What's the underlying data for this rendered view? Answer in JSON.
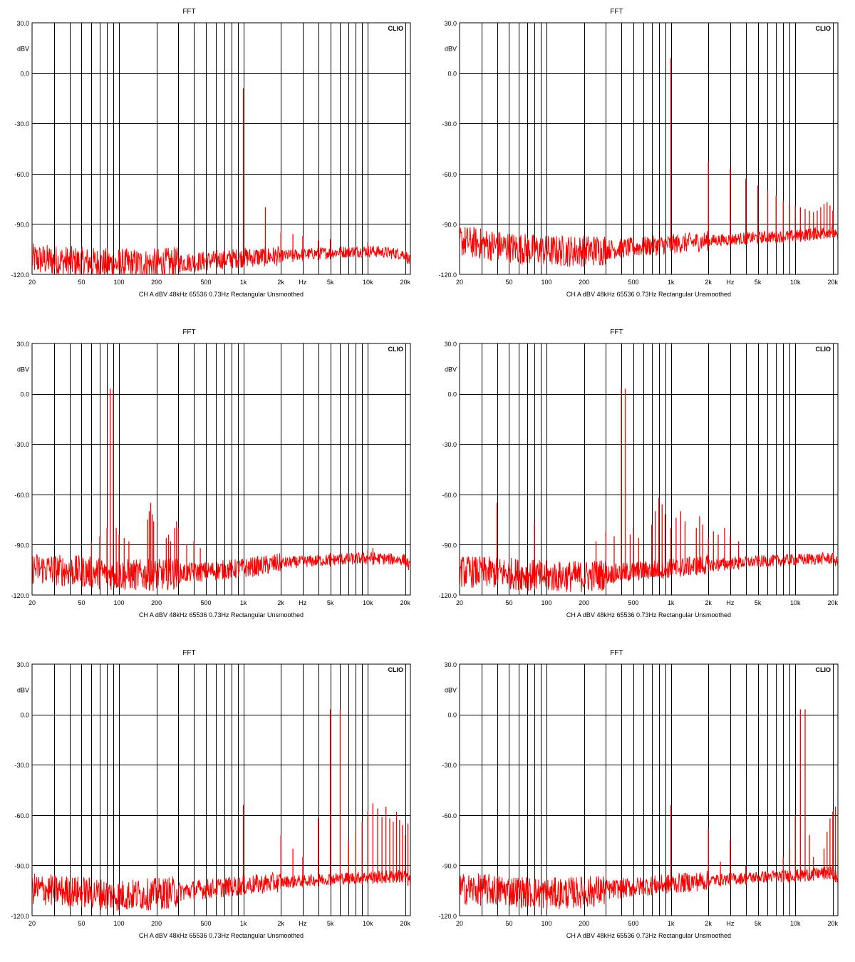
{
  "common": {
    "title": "FFT",
    "brand": "CLIO",
    "y_unit_label": "dBV",
    "x_unit_label": "Hz",
    "footer": "CH A   dBV   48kHz   65536   0.73Hz   Rectangular   Unsmoothed",
    "y_ticks": [
      "30.0",
      "0.0",
      "-30.0",
      "-60.0",
      "-90.0",
      "-120.0"
    ],
    "x_ticks": [
      {
        "f": 20,
        "label": "20"
      },
      {
        "f": 50,
        "label": "50"
      },
      {
        "f": 100,
        "label": "100"
      },
      {
        "f": 200,
        "label": "200"
      },
      {
        "f": 500,
        "label": "500"
      },
      {
        "f": 1000,
        "label": "1k"
      },
      {
        "f": 2000,
        "label": "2k"
      },
      {
        "f": 5000,
        "label": "5k"
      },
      {
        "f": 10000,
        "label": "10k"
      },
      {
        "f": 20000,
        "label": "20k"
      }
    ],
    "colors": {
      "trace": "#ff0000",
      "grid": "#000000",
      "background": "#ffffff"
    }
  },
  "chart_data": [
    {
      "type": "line",
      "title": "FFT",
      "ylabel": "dBV",
      "x_scale": "log",
      "xlim": [
        20,
        22000
      ],
      "ylim": [
        -120,
        30
      ],
      "grid": true,
      "series": [
        {
          "floor": [
            [
              20,
              -111
            ],
            [
              50,
              -113
            ],
            [
              100,
              -114
            ],
            [
              200,
              -114
            ],
            [
              500,
              -112
            ],
            [
              1000,
              -110
            ],
            [
              2000,
              -109
            ],
            [
              5000,
              -107
            ],
            [
              10000,
              -106
            ],
            [
              20000,
              -108
            ],
            [
              22000,
              -113
            ]
          ],
          "peaks": [
            [
              1000,
              -9
            ],
            [
              1500,
              -80
            ],
            [
              2000,
              -95
            ],
            [
              2500,
              -96
            ],
            [
              3000,
              -97
            ],
            [
              4000,
              -100
            ],
            [
              5000,
              -99
            ],
            [
              10000,
              -101
            ]
          ]
        }
      ]
    },
    {
      "type": "line",
      "title": "FFT",
      "ylabel": "dBV",
      "x_scale": "log",
      "xlim": [
        20,
        22000
      ],
      "ylim": [
        -120,
        30
      ],
      "grid": true,
      "series": [
        {
          "floor": [
            [
              20,
              -100
            ],
            [
              50,
              -104
            ],
            [
              100,
              -106
            ],
            [
              200,
              -106
            ],
            [
              500,
              -104
            ],
            [
              1000,
              -102
            ],
            [
              2000,
              -100
            ],
            [
              5000,
              -98
            ],
            [
              10000,
              -97
            ],
            [
              20000,
              -94
            ],
            [
              22000,
              -99
            ]
          ],
          "peaks": [
            [
              1000,
              9
            ],
            [
              2000,
              -53
            ],
            [
              3000,
              -57
            ],
            [
              4000,
              -63
            ],
            [
              5000,
              -67
            ],
            [
              6000,
              -70
            ],
            [
              7000,
              -73
            ],
            [
              8000,
              -76
            ],
            [
              9000,
              -78
            ],
            [
              10000,
              -79
            ],
            [
              11000,
              -80
            ],
            [
              12000,
              -81
            ],
            [
              13000,
              -82
            ],
            [
              14000,
              -83
            ],
            [
              15000,
              -82
            ],
            [
              16000,
              -80
            ],
            [
              17000,
              -78
            ],
            [
              18000,
              -77
            ],
            [
              19000,
              -79
            ],
            [
              20000,
              -82
            ]
          ]
        }
      ]
    },
    {
      "type": "line",
      "title": "FFT",
      "ylabel": "dBV",
      "x_scale": "log",
      "xlim": [
        20,
        22000
      ],
      "ylim": [
        -120,
        30
      ],
      "grid": true,
      "series": [
        {
          "floor": [
            [
              20,
              -104
            ],
            [
              50,
              -106
            ],
            [
              100,
              -108
            ],
            [
              200,
              -108
            ],
            [
              500,
              -106
            ],
            [
              1000,
              -104
            ],
            [
              2000,
              -101
            ],
            [
              5000,
              -99
            ],
            [
              10000,
              -98
            ],
            [
              20000,
              -99
            ],
            [
              22000,
              -104
            ]
          ],
          "peaks": [
            [
              60,
              -88
            ],
            [
              70,
              -85
            ],
            [
              80,
              -80
            ],
            [
              85,
              3
            ],
            [
              90,
              3
            ],
            [
              95,
              -80
            ],
            [
              100,
              -84
            ],
            [
              110,
              -86
            ],
            [
              120,
              -88
            ],
            [
              170,
              -75
            ],
            [
              175,
              -70
            ],
            [
              180,
              -65
            ],
            [
              185,
              -72
            ],
            [
              190,
              -76
            ],
            [
              240,
              -86
            ],
            [
              250,
              -84
            ],
            [
              260,
              -88
            ],
            [
              280,
              -80
            ],
            [
              290,
              -76
            ],
            [
              300,
              -80
            ],
            [
              350,
              -90
            ],
            [
              400,
              -88
            ],
            [
              450,
              -92
            ],
            [
              5000,
              -95
            ],
            [
              10000,
              -93
            ],
            [
              11000,
              -92
            ]
          ]
        }
      ]
    },
    {
      "type": "line",
      "title": "FFT",
      "ylabel": "dBV",
      "x_scale": "log",
      "xlim": [
        20,
        22000
      ],
      "ylim": [
        -120,
        30
      ],
      "grid": true,
      "series": [
        {
          "floor": [
            [
              20,
              -106
            ],
            [
              50,
              -107
            ],
            [
              100,
              -109
            ],
            [
              200,
              -109
            ],
            [
              500,
              -106
            ],
            [
              1000,
              -104
            ],
            [
              2000,
              -102
            ],
            [
              5000,
              -100
            ],
            [
              10000,
              -99
            ],
            [
              20000,
              -98
            ],
            [
              22000,
              -101
            ]
          ],
          "peaks": [
            [
              40,
              -65
            ],
            [
              80,
              -77
            ],
            [
              250,
              -88
            ],
            [
              300,
              -82
            ],
            [
              350,
              -85
            ],
            [
              400,
              3
            ],
            [
              430,
              3
            ],
            [
              470,
              -84
            ],
            [
              500,
              -80
            ],
            [
              550,
              -86
            ],
            [
              700,
              -78
            ],
            [
              750,
              -70
            ],
            [
              800,
              -62
            ],
            [
              850,
              -66
            ],
            [
              900,
              -72
            ],
            [
              1000,
              -80
            ],
            [
              1100,
              -74
            ],
            [
              1200,
              -70
            ],
            [
              1300,
              -76
            ],
            [
              1600,
              -80
            ],
            [
              1700,
              -73
            ],
            [
              1800,
              -78
            ],
            [
              2000,
              -86
            ],
            [
              2200,
              -82
            ],
            [
              2400,
              -84
            ],
            [
              2700,
              -80
            ],
            [
              3000,
              -85
            ],
            [
              3500,
              -88
            ]
          ]
        }
      ]
    },
    {
      "type": "line",
      "title": "FFT",
      "ylabel": "dBV",
      "x_scale": "log",
      "xlim": [
        20,
        22000
      ],
      "ylim": [
        -120,
        30
      ],
      "grid": true,
      "series": [
        {
          "floor": [
            [
              20,
              -104
            ],
            [
              50,
              -106
            ],
            [
              100,
              -108
            ],
            [
              200,
              -107
            ],
            [
              500,
              -104
            ],
            [
              1000,
              -102
            ],
            [
              2000,
              -100
            ],
            [
              5000,
              -98
            ],
            [
              10000,
              -97
            ],
            [
              20000,
              -96
            ],
            [
              22000,
              -100
            ]
          ],
          "peaks": [
            [
              1000,
              -54
            ],
            [
              2000,
              -72
            ],
            [
              2500,
              -80
            ],
            [
              3000,
              -85
            ],
            [
              4000,
              -62
            ],
            [
              5000,
              3
            ],
            [
              6000,
              3
            ],
            [
              7000,
              -75
            ],
            [
              8000,
              -70
            ],
            [
              9000,
              -64
            ],
            [
              10000,
              -58
            ],
            [
              11000,
              -53
            ],
            [
              12000,
              -56
            ],
            [
              13000,
              -61
            ],
            [
              14000,
              -55
            ],
            [
              15000,
              -62
            ],
            [
              16000,
              -64
            ],
            [
              17000,
              -58
            ],
            [
              18000,
              -63
            ],
            [
              19000,
              -66
            ],
            [
              20000,
              -72
            ],
            [
              21000,
              -65
            ]
          ]
        }
      ]
    },
    {
      "type": "line",
      "title": "FFT",
      "ylabel": "dBV",
      "x_scale": "log",
      "xlim": [
        20,
        22000
      ],
      "ylim": [
        -120,
        30
      ],
      "grid": true,
      "series": [
        {
          "floor": [
            [
              20,
              -104
            ],
            [
              50,
              -105
            ],
            [
              100,
              -107
            ],
            [
              200,
              -106
            ],
            [
              500,
              -103
            ],
            [
              1000,
              -101
            ],
            [
              2000,
              -99
            ],
            [
              5000,
              -97
            ],
            [
              10000,
              -96
            ],
            [
              20000,
              -94
            ],
            [
              22000,
              -98
            ]
          ],
          "peaks": [
            [
              1000,
              -54
            ],
            [
              2000,
              -68
            ],
            [
              2500,
              -88
            ],
            [
              3000,
              -75
            ],
            [
              4000,
              -90
            ],
            [
              8000,
              -85
            ],
            [
              9000,
              -80
            ],
            [
              10000,
              -60
            ],
            [
              11000,
              3
            ],
            [
              12000,
              3
            ],
            [
              13000,
              -72
            ],
            [
              14000,
              -85
            ],
            [
              17000,
              -80
            ],
            [
              18000,
              -70
            ],
            [
              19000,
              -62
            ],
            [
              20000,
              -58
            ],
            [
              21000,
              -55
            ]
          ]
        }
      ]
    }
  ]
}
